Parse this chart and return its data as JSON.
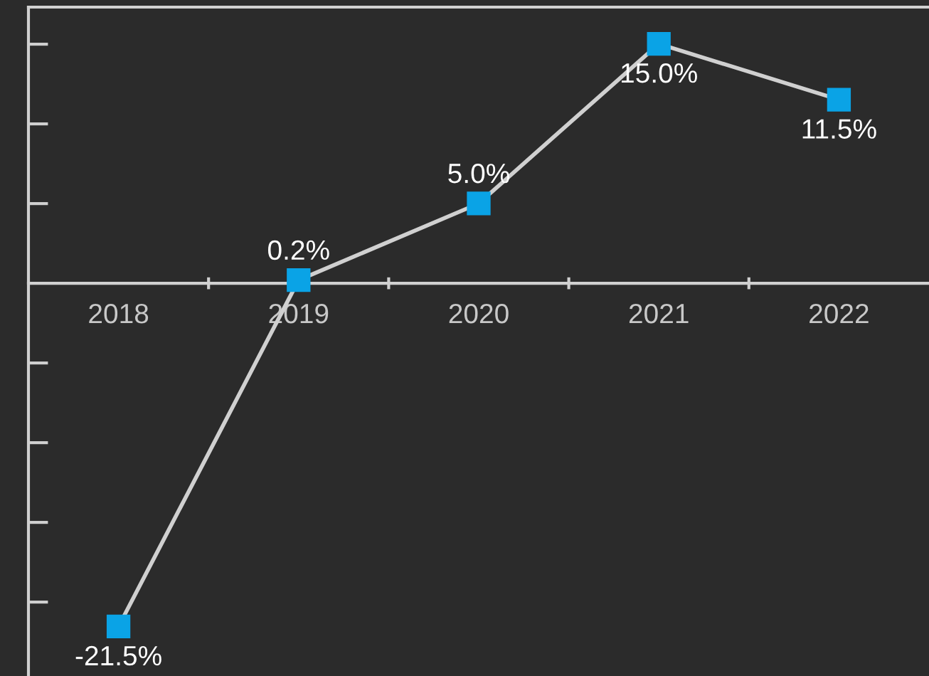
{
  "chart_data": {
    "type": "line",
    "categories": [
      "2018",
      "2019",
      "2020",
      "2021",
      "2022"
    ],
    "series": [
      {
        "color": "#0aa3e6",
        "values": [
          -21.5,
          0.2,
          5.0,
          15.0,
          11.5
        ],
        "value_labels": [
          "-21.5%",
          "0.2%",
          "5.0%",
          "15.0%",
          "11.5%"
        ]
      }
    ],
    "ylim": [
      -24.6,
      17.3
    ],
    "tick_labels": "x",
    "marker": "square",
    "line_style": "solid"
  }
}
